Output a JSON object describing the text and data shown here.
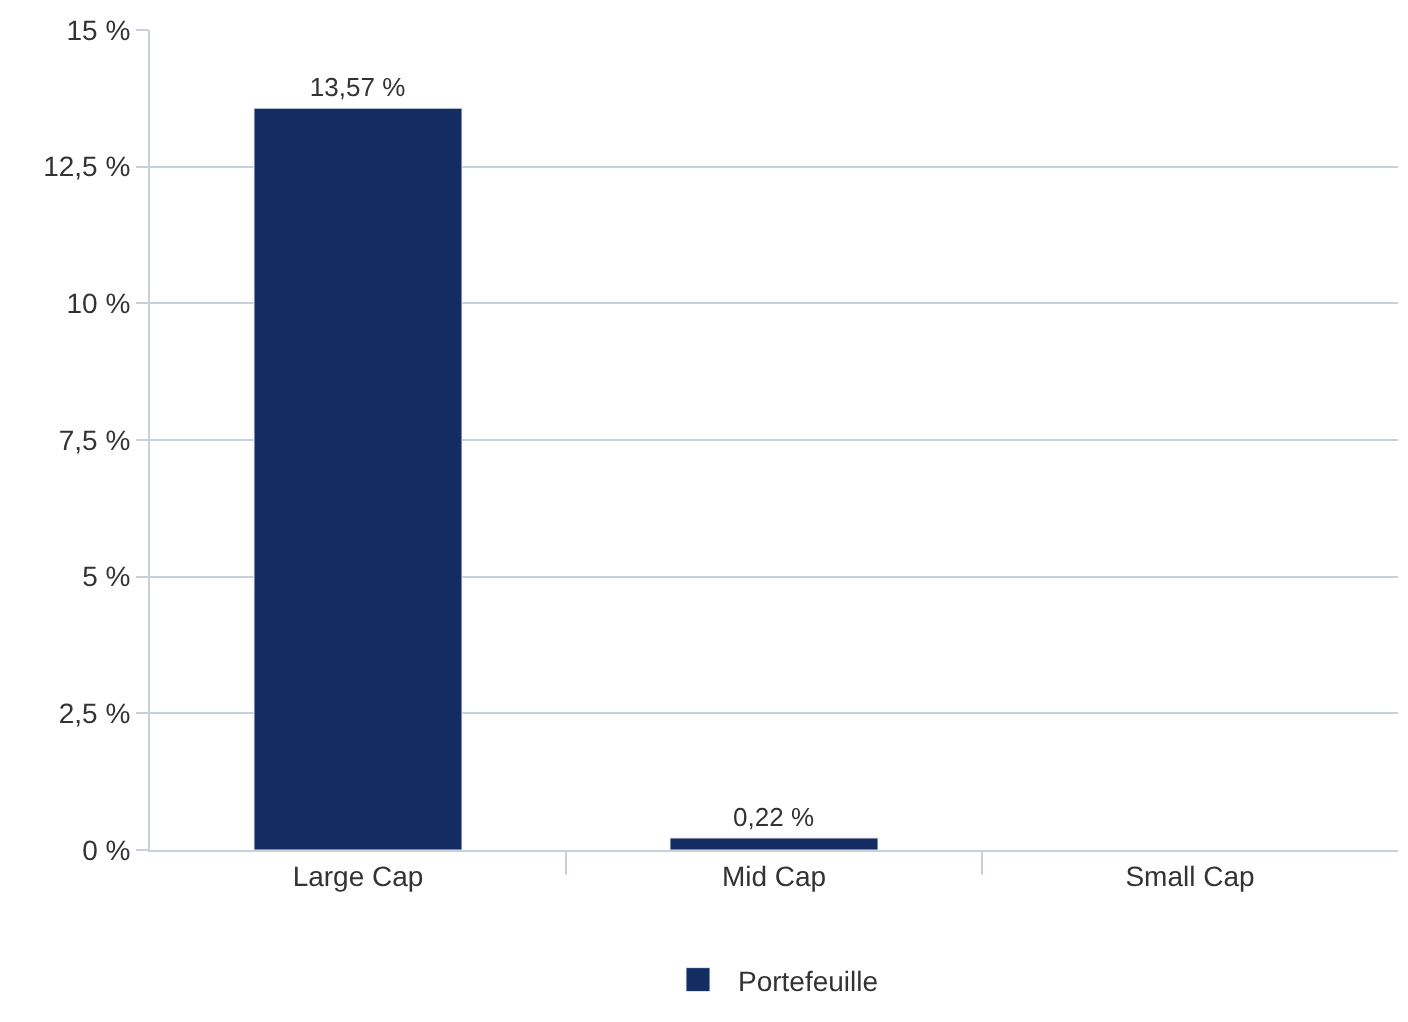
{
  "chart_data": {
    "type": "bar",
    "categories": [
      "Large Cap",
      "Mid Cap",
      "Small Cap"
    ],
    "series": [
      {
        "name": "Portefeuille",
        "color": "#132d63",
        "values": [
          13.57,
          0.22,
          null
        ],
        "value_labels": [
          "13,57 %",
          "0,22 %",
          null
        ]
      }
    ],
    "ylim": [
      0,
      15
    ],
    "yticks": [
      {
        "value": 0,
        "label": "0 %"
      },
      {
        "value": 2.5,
        "label": "2,5 %"
      },
      {
        "value": 5,
        "label": "5 %"
      },
      {
        "value": 7.5,
        "label": "7,5 %"
      },
      {
        "value": 10,
        "label": "10 %"
      },
      {
        "value": 12.5,
        "label": "12,5 %"
      },
      {
        "value": 15,
        "label": "15 %"
      }
    ],
    "grid": "y",
    "legend": "bottom"
  }
}
